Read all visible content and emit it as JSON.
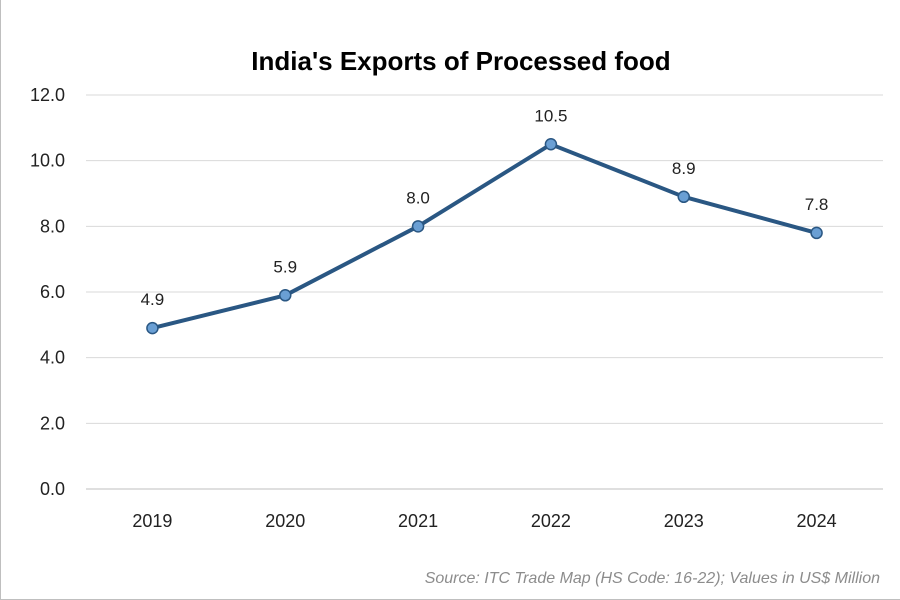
{
  "chart_data": {
    "type": "line",
    "title": "India's Exports of Processed food",
    "xlabel": "",
    "ylabel": "",
    "categories": [
      "2019",
      "2020",
      "2021",
      "2022",
      "2023",
      "2024"
    ],
    "series": [
      {
        "name": "Exports of Processed food",
        "values": [
          4.9,
          5.9,
          8.0,
          10.5,
          8.9,
          7.8
        ],
        "labels": [
          "4.9",
          "5.9",
          "8.0",
          "10.5",
          "8.9",
          "7.8"
        ],
        "color": "#2a5783",
        "marker_color": "#6a9fd4"
      }
    ],
    "ylim": [
      0,
      12
    ],
    "yticks": [
      0,
      2,
      4,
      6,
      8,
      10,
      12
    ],
    "ytick_labels": [
      "0.0",
      "2.0",
      "4.0",
      "6.0",
      "8.0",
      "10.0",
      "12.0"
    ],
    "grid": true,
    "gridline_color": "#d9d9d9",
    "source_note": "Source: ITC Trade Map (HS Code: 16-22); Values in US$ Million"
  }
}
